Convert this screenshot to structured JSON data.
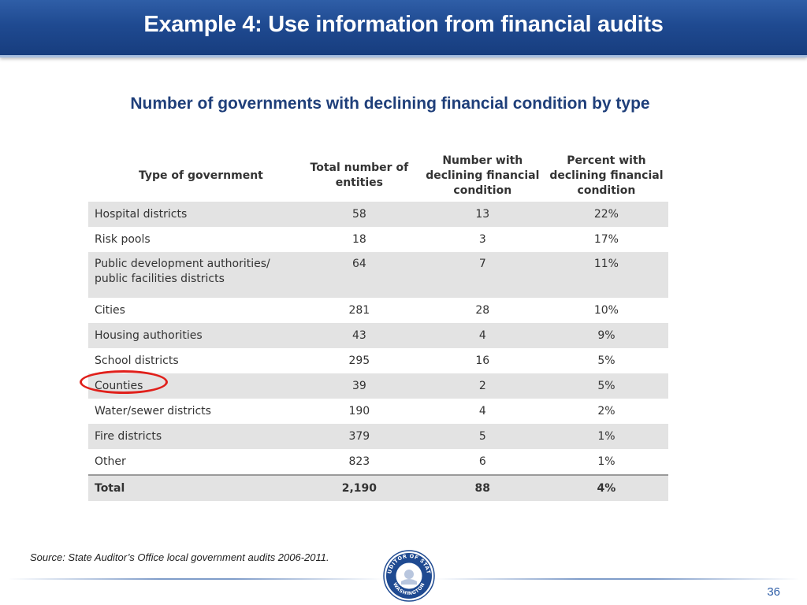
{
  "slide": {
    "title": "Example 4: Use information from financial audits",
    "subtitle": "Number of governments with declining financial condition by type",
    "source": "Source: State Auditor’s Office local government audits 2006-2011.",
    "page_number": "36"
  },
  "table": {
    "headers": {
      "type": "Type of government",
      "total": "Total number of entities",
      "declining": "Number with declining financial condition",
      "percent": "Percent with declining financial condition"
    },
    "rows": [
      {
        "type": "Hospital districts",
        "total": "58",
        "declining": "13",
        "percent": "22%"
      },
      {
        "type": "Risk pools",
        "total": "18",
        "declining": "3",
        "percent": "17%"
      },
      {
        "type": "Public development authorities/ public facilities districts",
        "total": "64",
        "declining": "7",
        "percent": "11%"
      },
      {
        "type": "Cities",
        "total": "281",
        "declining": "28",
        "percent": "10%"
      },
      {
        "type": "Housing authorities",
        "total": "43",
        "declining": "4",
        "percent": "9%"
      },
      {
        "type": "School districts",
        "total": "295",
        "declining": "16",
        "percent": "5%"
      },
      {
        "type": "Counties",
        "total": "39",
        "declining": "2",
        "percent": "5%"
      },
      {
        "type": "Water/sewer districts",
        "total": "190",
        "declining": "4",
        "percent": "2%"
      },
      {
        "type": "Fire districts",
        "total": "379",
        "declining": "5",
        "percent": "1%"
      },
      {
        "type": "Other",
        "total": "823",
        "declining": "6",
        "percent": "1%"
      }
    ],
    "total_row": {
      "type": "Total",
      "total": "2,190",
      "declining": "88",
      "percent": "4%"
    }
  },
  "seal": {
    "text_top": "AUDITOR OF STATE",
    "text_bottom": "WASHINGTON"
  },
  "colors": {
    "title_bar": "#1f4a91",
    "subtitle": "#1f3f7a",
    "row_shade": "#e3e3e3",
    "highlight": "#e0201b"
  }
}
